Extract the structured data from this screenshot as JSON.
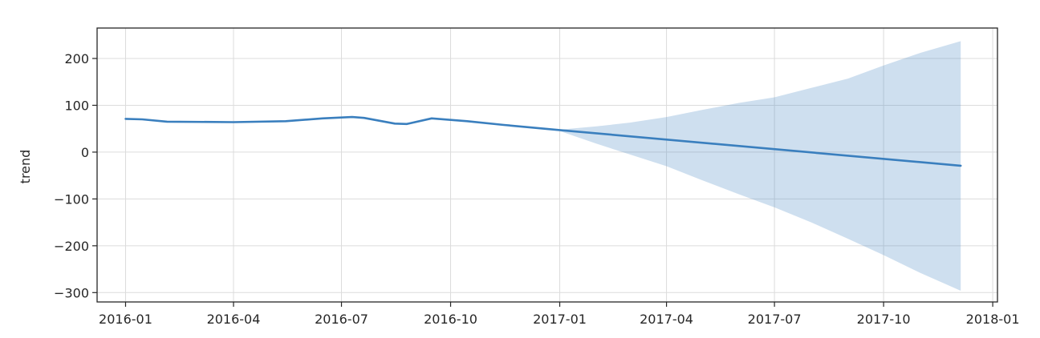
{
  "chart_data": {
    "type": "line",
    "xlabel": "",
    "ylabel": "trend",
    "x_is_date": true,
    "xlim": [
      "2015-12-08",
      "2018-01-05"
    ],
    "ylim": [
      -320,
      265
    ],
    "grid": true,
    "x_ticks": [
      {
        "date": "2016-01-01",
        "label": "2016-01"
      },
      {
        "date": "2016-04-01",
        "label": "2016-04"
      },
      {
        "date": "2016-07-01",
        "label": "2016-07"
      },
      {
        "date": "2016-10-01",
        "label": "2016-10"
      },
      {
        "date": "2017-01-01",
        "label": "2017-01"
      },
      {
        "date": "2017-04-01",
        "label": "2017-04"
      },
      {
        "date": "2017-07-01",
        "label": "2017-07"
      },
      {
        "date": "2017-10-01",
        "label": "2017-10"
      },
      {
        "date": "2018-01-01",
        "label": "2018-01"
      }
    ],
    "y_ticks": [
      {
        "value": 200,
        "label": "200"
      },
      {
        "value": 100,
        "label": "100"
      },
      {
        "value": 0,
        "label": "0"
      },
      {
        "value": -100,
        "label": "−100"
      },
      {
        "value": -200,
        "label": "−200"
      },
      {
        "value": -300,
        "label": "−300"
      }
    ],
    "series": [
      {
        "color": "#3a7fbe",
        "points": [
          {
            "x": "2016-01-01",
            "y": 71
          },
          {
            "x": "2016-01-15",
            "y": 70
          },
          {
            "x": "2016-02-05",
            "y": 65
          },
          {
            "x": "2016-04-01",
            "y": 64
          },
          {
            "x": "2016-05-15",
            "y": 66
          },
          {
            "x": "2016-06-15",
            "y": 72
          },
          {
            "x": "2016-07-10",
            "y": 75
          },
          {
            "x": "2016-07-20",
            "y": 73
          },
          {
            "x": "2016-08-15",
            "y": 61
          },
          {
            "x": "2016-08-25",
            "y": 60
          },
          {
            "x": "2016-09-15",
            "y": 72
          },
          {
            "x": "2016-10-15",
            "y": 66
          },
          {
            "x": "2016-11-15",
            "y": 58
          },
          {
            "x": "2017-01-01",
            "y": 47
          },
          {
            "x": "2017-12-05",
            "y": -29
          }
        ]
      }
    ],
    "band": {
      "color": "#3a7fbe",
      "opacity": 0.25,
      "upper": [
        {
          "x": "2016-12-20",
          "y": 50
        },
        {
          "x": "2017-01-01",
          "y": 48
        },
        {
          "x": "2017-02-01",
          "y": 55
        },
        {
          "x": "2017-03-01",
          "y": 63
        },
        {
          "x": "2017-04-01",
          "y": 75
        },
        {
          "x": "2017-05-01",
          "y": 90
        },
        {
          "x": "2017-06-01",
          "y": 105
        },
        {
          "x": "2017-07-01",
          "y": 117
        },
        {
          "x": "2017-08-01",
          "y": 137
        },
        {
          "x": "2017-09-01",
          "y": 157
        },
        {
          "x": "2017-10-01",
          "y": 185
        },
        {
          "x": "2017-11-01",
          "y": 212
        },
        {
          "x": "2017-12-05",
          "y": 237
        }
      ],
      "lower": [
        {
          "x": "2016-12-20",
          "y": 48
        },
        {
          "x": "2017-01-01",
          "y": 45
        },
        {
          "x": "2017-02-01",
          "y": 18
        },
        {
          "x": "2017-03-01",
          "y": -5
        },
        {
          "x": "2017-04-01",
          "y": -30
        },
        {
          "x": "2017-05-01",
          "y": -60
        },
        {
          "x": "2017-06-01",
          "y": -90
        },
        {
          "x": "2017-07-01",
          "y": -118
        },
        {
          "x": "2017-08-01",
          "y": -150
        },
        {
          "x": "2017-09-01",
          "y": -185
        },
        {
          "x": "2017-10-01",
          "y": -220
        },
        {
          "x": "2017-11-01",
          "y": -258
        },
        {
          "x": "2017-12-05",
          "y": -296
        }
      ]
    }
  }
}
